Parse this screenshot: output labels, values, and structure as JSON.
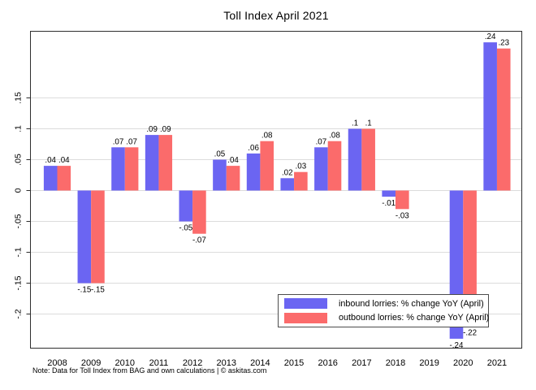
{
  "note": "Note: Data for Toll Index from BAG and own calculations | © askitas.com",
  "chart_data": {
    "type": "bar",
    "title": "Toll Index April 2021",
    "xlabel": "",
    "ylabel": "",
    "grid": true,
    "legend_position": "inside-bottom-right",
    "ylim": [
      -0.255,
      0.258
    ],
    "categories": [
      "2008",
      "2009",
      "2010",
      "2011",
      "2012",
      "2013",
      "2014",
      "2015",
      "2016",
      "2017",
      "2018",
      "2019",
      "2020",
      "2021"
    ],
    "series": [
      {
        "name": "inbound lorries: % change YoY (April)",
        "color": "#6b65f2",
        "values": [
          0.04,
          -0.15,
          0.07,
          0.09,
          -0.05,
          0.05,
          0.06,
          0.02,
          0.07,
          0.1,
          -0.01,
          null,
          -0.24,
          0.24
        ],
        "labels": [
          ".04",
          "-.15",
          ".07",
          ".09",
          "-.05",
          ".05",
          ".06",
          ".02",
          ".07",
          ".1",
          "-.01",
          null,
          "-.24",
          ".24"
        ]
      },
      {
        "name": "outbound lorries: % change YoY (April)",
        "color": "#fb6b6b",
        "values": [
          0.04,
          -0.15,
          0.07,
          0.09,
          -0.07,
          0.04,
          0.08,
          0.03,
          0.08,
          0.1,
          -0.03,
          null,
          -0.22,
          0.23
        ],
        "labels": [
          ".04",
          "-.15",
          ".07",
          ".09",
          "-.07",
          ".04",
          ".08",
          ".03",
          ".08",
          ".1",
          "-.03",
          null,
          "-.22",
          ".23"
        ]
      }
    ],
    "y_ticks": [
      {
        "value": 0.15,
        "label": ".15"
      },
      {
        "value": 0.1,
        "label": ".1"
      },
      {
        "value": 0.05,
        "label": ".05"
      },
      {
        "value": 0,
        "label": "0"
      },
      {
        "value": -0.05,
        "label": "-.05"
      },
      {
        "value": -0.1,
        "label": "-.1"
      },
      {
        "value": -0.15,
        "label": "-.15"
      },
      {
        "value": -0.2,
        "label": "-.2"
      }
    ]
  }
}
